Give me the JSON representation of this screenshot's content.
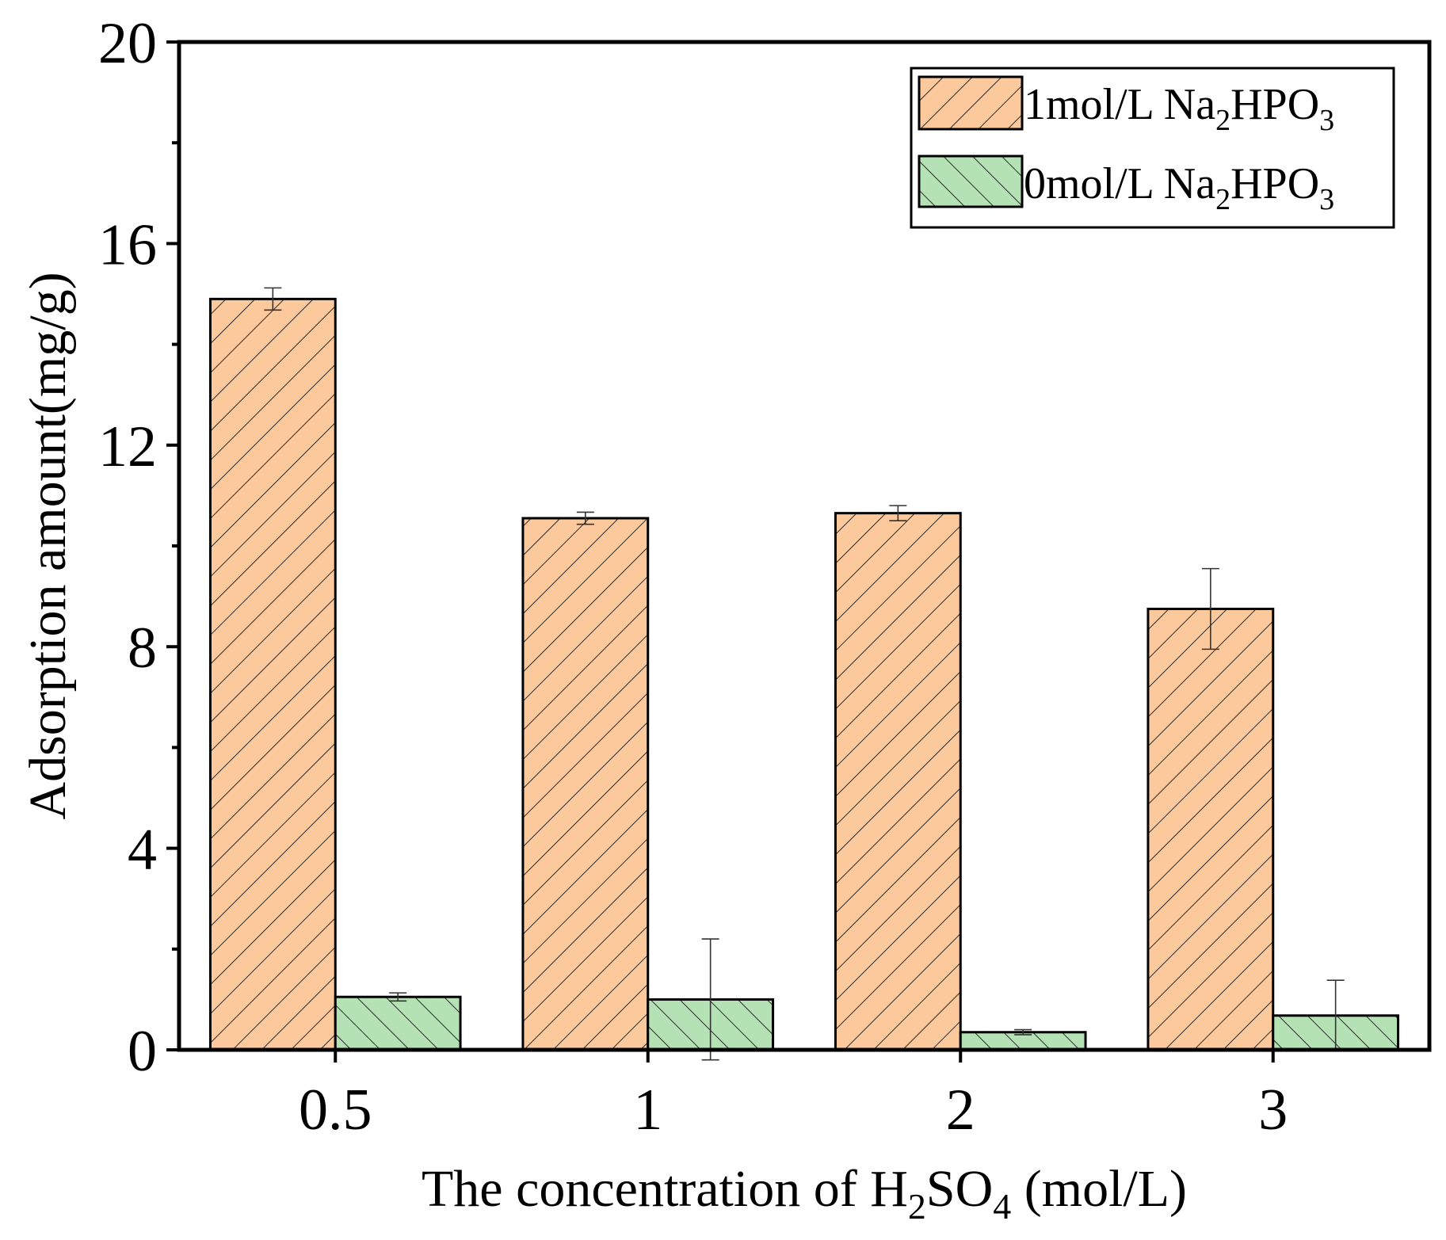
{
  "chart_data": {
    "type": "bar",
    "title": "",
    "xlabel": "The concentration of H2SO4 (mol/L)",
    "xlabel_parts": {
      "pre": "The concentration of H",
      "sub1": "2",
      "mid": "SO",
      "sub2": "4",
      "post": " (mol/L)"
    },
    "ylabel": "Adsorption amount(mg/g)",
    "categories": [
      "0.5",
      "1",
      "2",
      "3"
    ],
    "ylim": [
      0,
      20
    ],
    "yticks": [
      0,
      4,
      8,
      12,
      16,
      20
    ],
    "grid": false,
    "legend_position": "top-right",
    "series": [
      {
        "name": "1mol/L Na2HPO3",
        "label_parts": {
          "pre": "1mol/L Na",
          "sub1": "2",
          "mid": "HPO",
          "sub2": "3"
        },
        "values": [
          14.9,
          10.55,
          10.65,
          8.75
        ],
        "errors": [
          0.22,
          0.12,
          0.15,
          0.8
        ],
        "fill": "#fcc99d",
        "hatch": "forward"
      },
      {
        "name": "0mol/L Na2HPO3",
        "label_parts": {
          "pre": "0mol/L Na",
          "sub1": "2",
          "mid": "HPO",
          "sub2": "3"
        },
        "values": [
          1.05,
          1.0,
          0.35,
          0.68
        ],
        "errors": [
          0.08,
          1.2,
          0.05,
          0.7
        ],
        "fill": "#b5e2b5",
        "hatch": "backward"
      }
    ]
  }
}
